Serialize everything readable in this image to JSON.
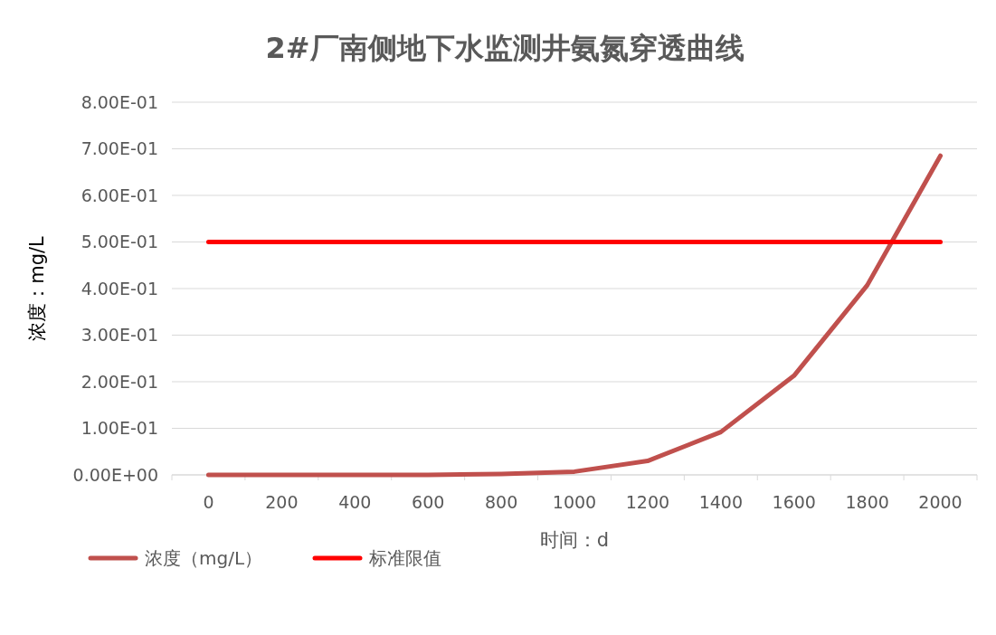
{
  "chart_data": {
    "type": "line",
    "title": "2#厂南侧地下水监测井氨氮穿透曲线",
    "xlabel": "时间：d",
    "ylabel": "浓度：mg/L",
    "categories": [
      "0",
      "200",
      "400",
      "600",
      "800",
      "1000",
      "1200",
      "1400",
      "1600",
      "1800",
      "2000"
    ],
    "series": [
      {
        "name": "浓度（mg/L）",
        "color": "#c0504d",
        "values": [
          0,
          0,
          0,
          0,
          0.002,
          0.007,
          0.03,
          0.092,
          0.213,
          0.407,
          0.685
        ]
      },
      {
        "name": "标准限值",
        "color": "#ff0000",
        "values": [
          0.5,
          0.5,
          0.5,
          0.5,
          0.5,
          0.5,
          0.5,
          0.5,
          0.5,
          0.5,
          0.5
        ]
      }
    ],
    "ylim": [
      0,
      0.8
    ],
    "yticks": [
      {
        "value": 0,
        "label": "0.00E+00"
      },
      {
        "value": 0.1,
        "label": "1.00E-01"
      },
      {
        "value": 0.2,
        "label": "2.00E-01"
      },
      {
        "value": 0.3,
        "label": "3.00E-01"
      },
      {
        "value": 0.4,
        "label": "4.00E-01"
      },
      {
        "value": 0.5,
        "label": "5.00E-01"
      },
      {
        "value": 0.6,
        "label": "6.00E-01"
      },
      {
        "value": 0.7,
        "label": "7.00E-01"
      },
      {
        "value": 0.8,
        "label": "8.00E-01"
      }
    ],
    "grid": "y",
    "legend": "bottom",
    "marker": "none",
    "line_style": "solid"
  }
}
